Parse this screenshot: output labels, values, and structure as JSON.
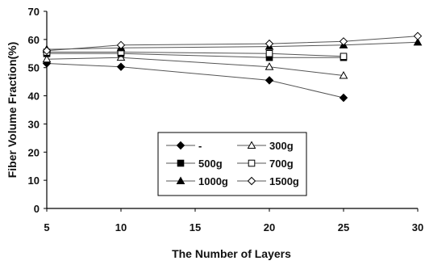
{
  "chart_data": {
    "type": "line",
    "xlabel": "The Number of Layers",
    "ylabel": "Fiber Volume Fraction(%)",
    "xlim": [
      5,
      30
    ],
    "ylim": [
      0,
      70
    ],
    "xticks": [
      5,
      10,
      15,
      20,
      25,
      30
    ],
    "yticks": [
      0,
      10,
      20,
      30,
      40,
      50,
      60,
      70
    ],
    "grid": false,
    "legend_position": "center",
    "series": [
      {
        "name": "-",
        "marker": "diamond-filled",
        "points": [
          [
            5,
            51.5
          ],
          [
            10,
            50.3
          ],
          [
            20,
            45.5
          ],
          [
            25,
            39.3
          ]
        ]
      },
      {
        "name": "300g",
        "marker": "triangle-open",
        "points": [
          [
            5,
            53.0
          ],
          [
            10,
            53.6
          ],
          [
            20,
            50.3
          ],
          [
            25,
            47.2
          ]
        ]
      },
      {
        "name": "500g",
        "marker": "square-filled",
        "points": [
          [
            5,
            55.0
          ],
          [
            10,
            55.0
          ],
          [
            20,
            53.6
          ],
          [
            25,
            53.6
          ]
        ]
      },
      {
        "name": "700g",
        "marker": "square-open",
        "points": [
          [
            5,
            55.5
          ],
          [
            10,
            55.5
          ],
          [
            20,
            55.0
          ],
          [
            25,
            54.0
          ]
        ]
      },
      {
        "name": "1000g",
        "marker": "triangle-filled",
        "points": [
          [
            5,
            56.5
          ],
          [
            10,
            57.0
          ],
          [
            20,
            57.5
          ],
          [
            25,
            58.0
          ],
          [
            30,
            59.0
          ]
        ]
      },
      {
        "name": "1500g",
        "marker": "diamond-open",
        "points": [
          [
            5,
            56.0
          ],
          [
            10,
            58.0
          ],
          [
            20,
            58.5
          ],
          [
            25,
            59.3
          ],
          [
            30,
            61.2
          ]
        ]
      }
    ]
  }
}
